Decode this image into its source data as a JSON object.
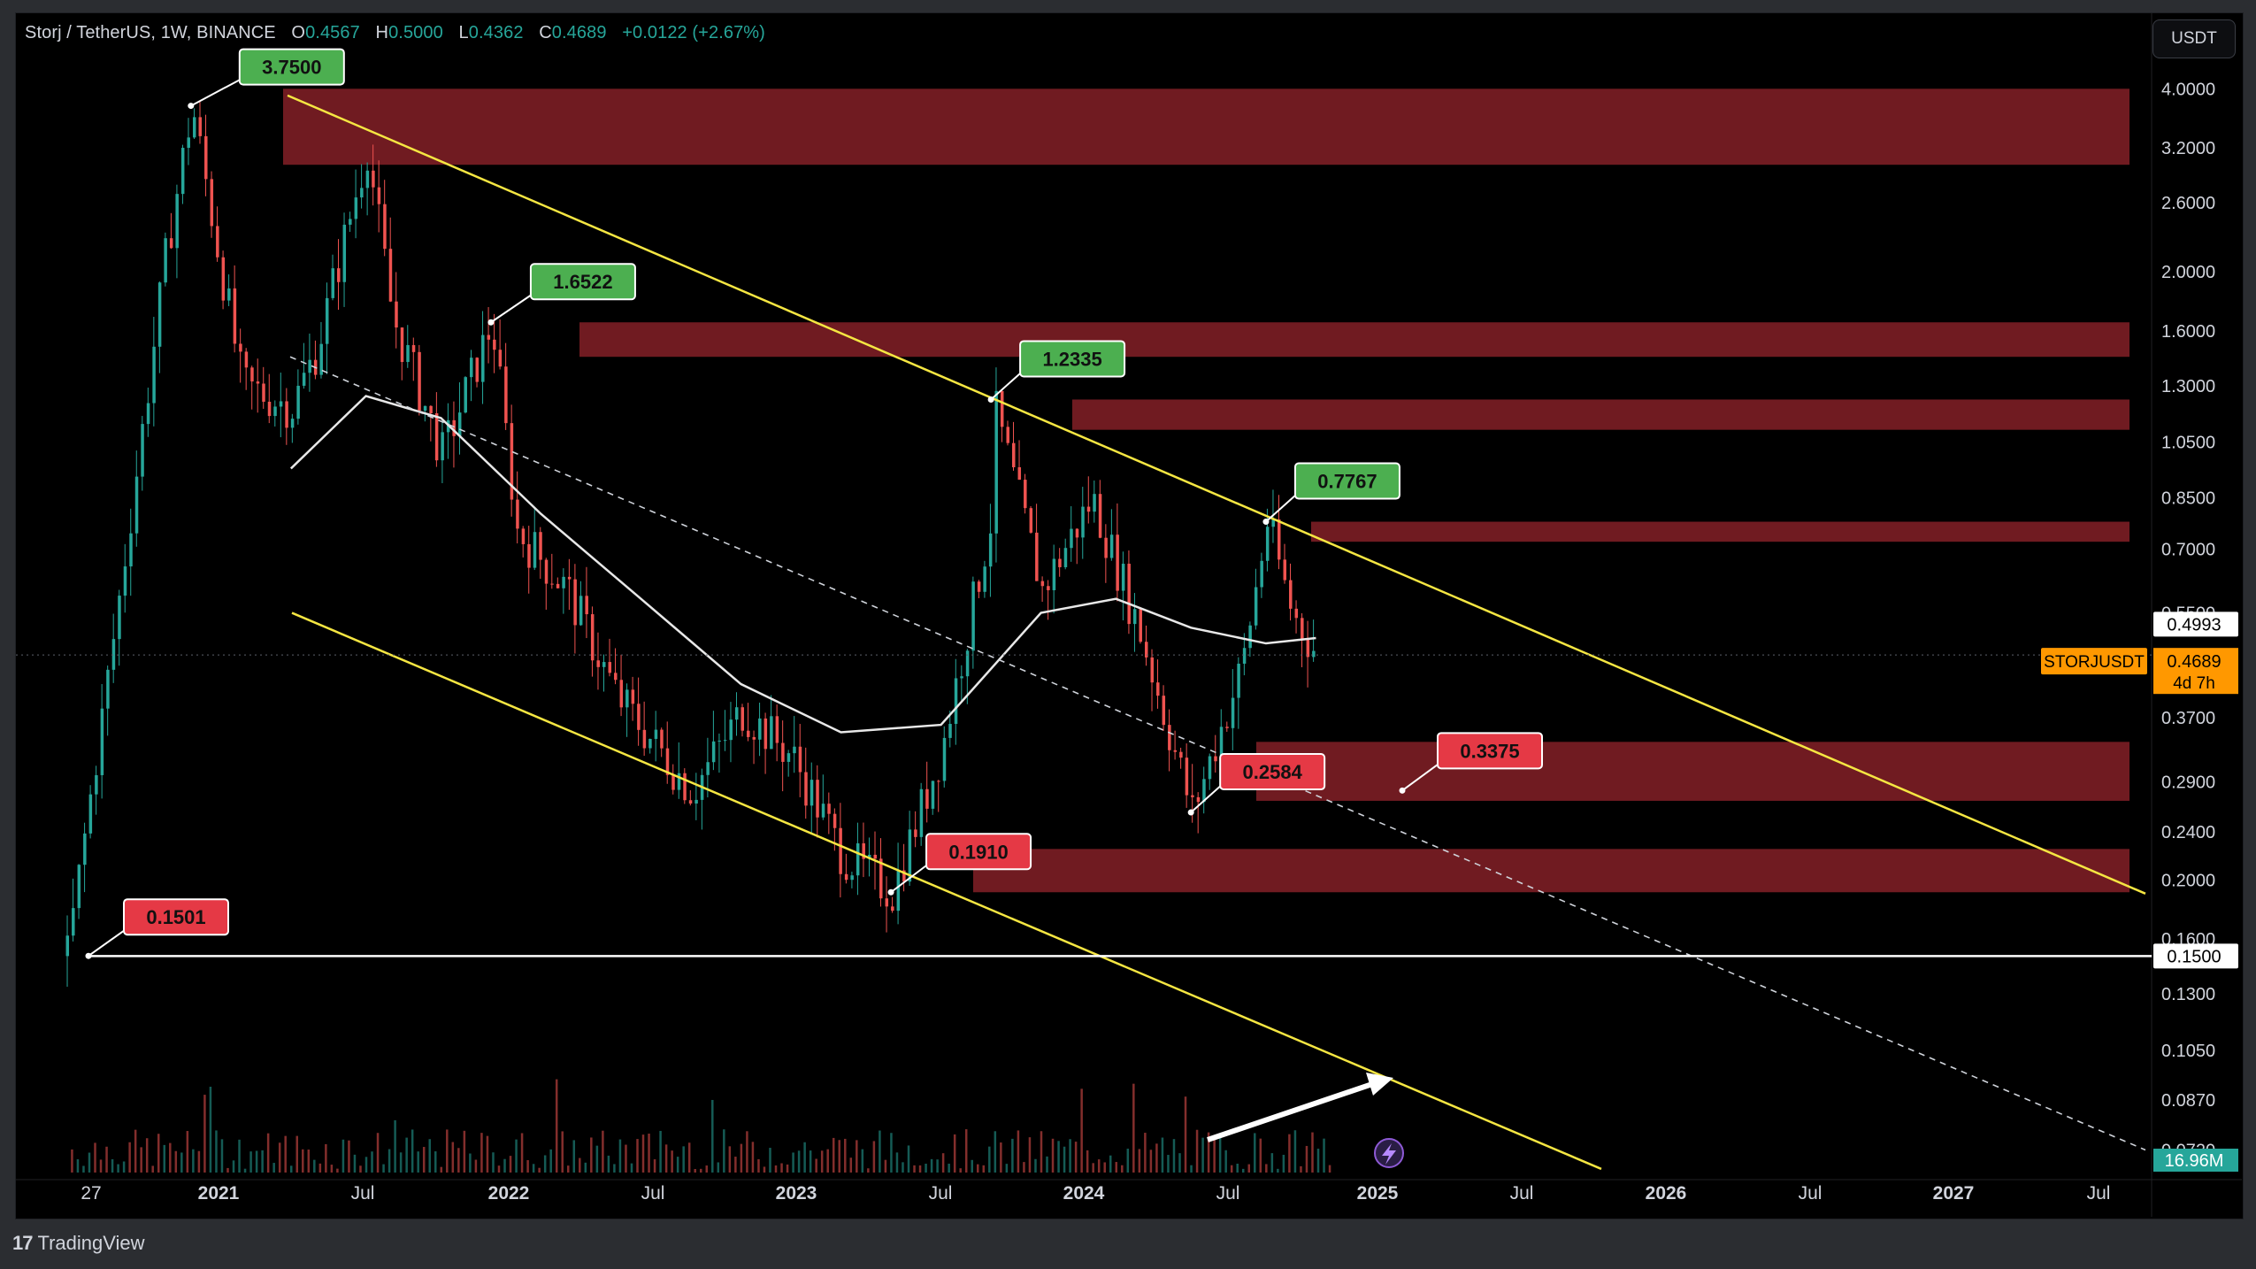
{
  "header": {
    "symbol": "Storj / TetherUS, 1W, BINANCE",
    "o_label": "O",
    "o_value": "0.4567",
    "h_label": "H",
    "h_value": "0.5000",
    "l_label": "L",
    "l_value": "0.4362",
    "c_label": "C",
    "c_value": "0.4689",
    "change": "+0.0122 (+2.67%)"
  },
  "currency_button": "USDT",
  "footer": {
    "logo": "17",
    "brand": "TradingView"
  },
  "colors": {
    "background": "#000000",
    "up": "#26a69a",
    "down": "#ef5350",
    "zone": "#7a1d24",
    "channel": "#f5e642",
    "ma": "#e8e8e8",
    "label_high": "#4caf50",
    "label_low": "#e53945",
    "price_tag": "#ff9800"
  },
  "chart_data": {
    "type": "candlestick",
    "title": "Storj / TetherUS, 1W, BINANCE",
    "y_scale": "log",
    "ylim": [
      0.065,
      5.2
    ],
    "y_ticks": [
      "4.0000",
      "3.2000",
      "2.6000",
      "2.0000",
      "1.6000",
      "1.3000",
      "1.0500",
      "0.8500",
      "0.7000",
      "0.5500",
      "0.3700",
      "0.2900",
      "0.2400",
      "0.2000",
      "0.1600",
      "0.1300",
      "0.1050",
      "0.0870",
      "0.0720"
    ],
    "x_ticks": [
      "27",
      "2021",
      "Jul",
      "2022",
      "Jul",
      "2023",
      "Jul",
      "2024",
      "Jul",
      "2025",
      "Jul",
      "2026",
      "Jul",
      "2027",
      "Jul"
    ],
    "xlim": [
      "2020-09",
      "2027-10"
    ],
    "series_path": [
      [
        "2020-11",
        0.15
      ],
      [
        "2021-01",
        0.55
      ],
      [
        "2021-03",
        2.2
      ],
      [
        "2021-04",
        3.75
      ],
      [
        "2021-06",
        1.3
      ],
      [
        "2021-08",
        1.2
      ],
      [
        "2021-09",
        1.5
      ],
      [
        "2021-11",
        3.2
      ],
      [
        "2021-12",
        1.7
      ],
      [
        "2022-02",
        1.0
      ],
      [
        "2022-04",
        1.6522
      ],
      [
        "2022-05",
        0.75
      ],
      [
        "2022-07",
        0.6
      ],
      [
        "2022-09",
        0.4
      ],
      [
        "2022-12",
        0.28
      ],
      [
        "2023-02",
        0.38
      ],
      [
        "2023-04",
        0.32
      ],
      [
        "2023-06",
        0.22
      ],
      [
        "2023-08",
        0.191
      ],
      [
        "2023-10",
        0.33
      ],
      [
        "2023-12",
        0.8
      ],
      [
        "2023-12",
        1.2335
      ],
      [
        "2024-02",
        0.6
      ],
      [
        "2024-04",
        0.85
      ],
      [
        "2024-06",
        0.5
      ],
      [
        "2024-08",
        0.2584
      ],
      [
        "2024-10",
        0.45
      ],
      [
        "2024-11",
        0.7767
      ],
      [
        "2024-12",
        0.55
      ],
      [
        "2025-01",
        0.4689
      ]
    ],
    "moving_average": [
      [
        "2021-08",
        0.95
      ],
      [
        "2021-11",
        1.25
      ],
      [
        "2022-02",
        1.15
      ],
      [
        "2022-06",
        0.8
      ],
      [
        "2022-10",
        0.58
      ],
      [
        "2023-02",
        0.42
      ],
      [
        "2023-06",
        0.35
      ],
      [
        "2023-10",
        0.36
      ],
      [
        "2024-02",
        0.55
      ],
      [
        "2024-05",
        0.58
      ],
      [
        "2024-08",
        0.52
      ],
      [
        "2024-11",
        0.49
      ],
      [
        "2025-01",
        0.5
      ]
    ],
    "volume_axis_label": "16.96M",
    "resistance_zones": [
      {
        "from": 3.0,
        "to": 4.0
      },
      {
        "from": 1.45,
        "to": 1.6522
      },
      {
        "from": 1.1,
        "to": 1.2335
      },
      {
        "from": 0.72,
        "to": 0.7767
      },
      {
        "from": 0.27,
        "to": 0.3375
      },
      {
        "from": 0.191,
        "to": 0.225
      }
    ],
    "price_labels": [
      {
        "text": "3.7500",
        "value": 3.75,
        "date": "2021-04",
        "kind": "high"
      },
      {
        "text": "1.6522",
        "value": 1.6522,
        "date": "2022-04",
        "kind": "high"
      },
      {
        "text": "1.2335",
        "value": 1.2335,
        "date": "2023-12",
        "kind": "high"
      },
      {
        "text": "0.7767",
        "value": 0.7767,
        "date": "2024-11",
        "kind": "high"
      },
      {
        "text": "0.3375",
        "value": 0.3375,
        "date": "2025-01",
        "kind": "low"
      },
      {
        "text": "0.2584",
        "value": 0.2584,
        "date": "2024-08",
        "kind": "low"
      },
      {
        "text": "0.1910",
        "value": 0.191,
        "date": "2023-08",
        "kind": "low"
      },
      {
        "text": "0.1501",
        "value": 0.1501,
        "date": "2020-11",
        "kind": "low"
      }
    ],
    "horizontal_line": {
      "value": 0.15,
      "label": "0.1500"
    },
    "axis_tags": [
      {
        "text": "0.4993",
        "value": 0.4993,
        "style": "white"
      },
      {
        "text": "0.4689",
        "value": 0.4689,
        "style": "orange"
      },
      {
        "text": "4d 7h",
        "style": "orange"
      },
      {
        "text": "STORJUSDT",
        "style": "orange-badge"
      }
    ]
  }
}
